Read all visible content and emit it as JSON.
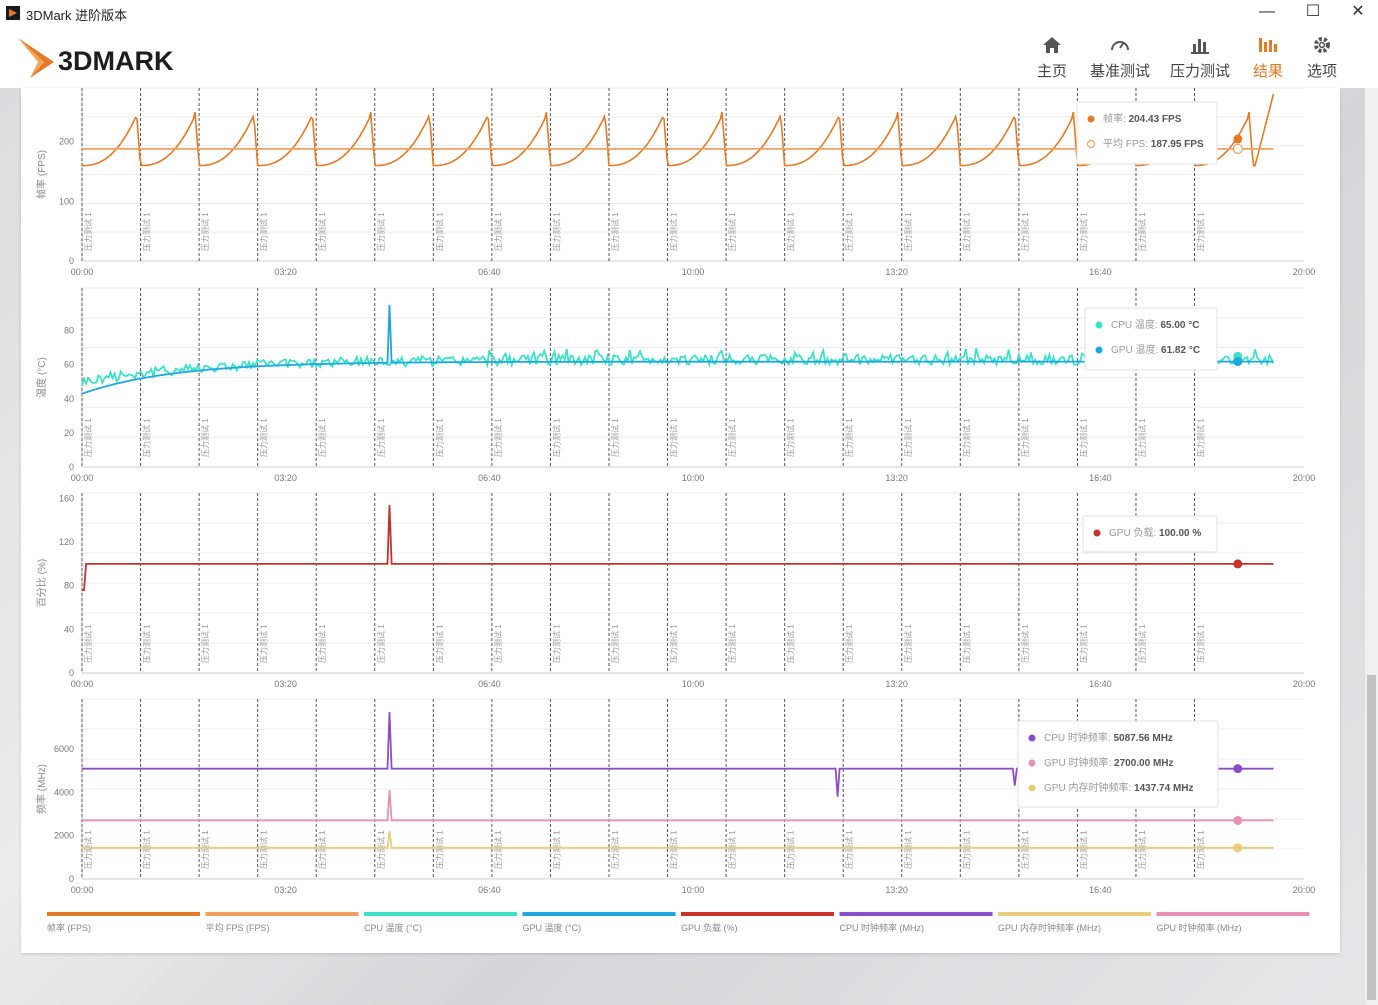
{
  "window": {
    "title": "3DMark 进阶版本",
    "minimize": "—",
    "maximize": "☐",
    "close": "✕"
  },
  "app": {
    "logo_text": "3DMARK"
  },
  "nav": [
    {
      "label": "主页",
      "icon": "home-icon"
    },
    {
      "label": "基准测试",
      "icon": "gauge-icon"
    },
    {
      "label": "压力测试",
      "icon": "bar-chart-icon"
    },
    {
      "label": "结果",
      "icon": "results-icon",
      "active": true
    },
    {
      "label": "选项",
      "icon": "gear-icon"
    }
  ],
  "colors": {
    "fps": "#e37a28",
    "avg_fps": "#f0a060",
    "cpu_temp": "#3de0c8",
    "gpu_temp": "#1ea8e0",
    "gpu_load": "#c8322d",
    "cpu_clock": "#8a4fc8",
    "gpu_mem_clock": "#e8cc78",
    "gpu_clock": "#e690b4",
    "marker": "#555555"
  },
  "chart_data": [
    {
      "type": "line",
      "id": "fps",
      "ylabel": "帧率 (FPS)",
      "ylim": [
        0,
        290
      ],
      "yticks": [
        0,
        100,
        200
      ],
      "xlim": [
        0,
        1200
      ],
      "xticks": [
        "00:00",
        "03:20",
        "06:40",
        "10:00",
        "13:20",
        "16:40",
        "20:00"
      ],
      "markers": {
        "label": "压力测试 1",
        "count": 20,
        "interval_s": 57.5
      },
      "series": [
        {
          "name": "帧率",
          "color_key": "fps",
          "pattern": "sawtooth",
          "base": 160,
          "peak": 260,
          "period": 57.5,
          "end_value": 280
        },
        {
          "name": "平均 FPS",
          "color_key": "avg_fps",
          "pattern": "flat",
          "base": 187.95
        }
      ],
      "tooltip": [
        {
          "label": "帧率",
          "value": "204.43 FPS",
          "color_key": "fps",
          "hollow": false
        },
        {
          "label": "平均 FPS",
          "value": "187.95 FPS",
          "color_key": "avg_fps",
          "hollow": true
        }
      ]
    },
    {
      "type": "line",
      "id": "temperature",
      "ylabel": "温度 (°C)",
      "ylim": [
        0,
        105
      ],
      "yticks": [
        0,
        20,
        40,
        60,
        80
      ],
      "xlim": [
        0,
        1200
      ],
      "xticks": [
        "00:00",
        "03:20",
        "06:40",
        "10:00",
        "13:20",
        "16:40",
        "20:00"
      ],
      "markers": {
        "label": "压力测试 1",
        "count": 20,
        "interval_s": 57.5
      },
      "series": [
        {
          "name": "CPU 温度",
          "color_key": "cpu_temp",
          "pattern": "noisy_rise",
          "start": 50,
          "base": 63,
          "jitter": 3
        },
        {
          "name": "GPU 温度",
          "color_key": "gpu_temp",
          "pattern": "rise",
          "start": 43,
          "base": 61.8,
          "spike_at": 302,
          "spike_value": 95
        }
      ],
      "tooltip": [
        {
          "label": "CPU 温度",
          "value": "65.00 °C",
          "color_key": "cpu_temp",
          "hollow": false
        },
        {
          "label": "GPU 温度",
          "value": "61.82 °C",
          "color_key": "gpu_temp",
          "hollow": false
        }
      ]
    },
    {
      "type": "line",
      "id": "percent",
      "ylabel": "百分比 (%)",
      "ylim": [
        0,
        165
      ],
      "yticks": [
        0,
        40,
        80,
        120,
        160
      ],
      "xlim": [
        0,
        1200
      ],
      "xticks": [
        "00:00",
        "03:20",
        "06:40",
        "10:00",
        "13:20",
        "16:40",
        "20:00"
      ],
      "markers": {
        "label": "压力测试 1",
        "count": 20,
        "interval_s": 57.5
      },
      "series": [
        {
          "name": "GPU 负载",
          "color_key": "gpu_load",
          "pattern": "flat",
          "base": 100,
          "start_dip": 76,
          "spike_at": 302,
          "spike_value": 154
        }
      ],
      "tooltip": [
        {
          "label": "GPU 负载",
          "value": "100.00 %",
          "color_key": "gpu_load",
          "hollow": false
        }
      ]
    },
    {
      "type": "line",
      "id": "clock",
      "ylabel": "频率 (MHz)",
      "ylim": [
        0,
        8300
      ],
      "yticks": [
        0,
        2000,
        4000,
        6000
      ],
      "xlim": [
        0,
        1200
      ],
      "xticks": [
        "00:00",
        "03:20",
        "06:40",
        "10:00",
        "13:20",
        "16:40",
        "20:00"
      ],
      "markers": {
        "label": "压力测试 1",
        "count": 20,
        "interval_s": 57.5
      },
      "series": [
        {
          "name": "CPU 时钟频率",
          "color_key": "cpu_clock",
          "pattern": "flat",
          "base": 5087.56,
          "spike_at": 302,
          "spike_value": 7700,
          "dips": [
            [
              742,
              3800
            ],
            [
              916,
              4300
            ]
          ]
        },
        {
          "name": "GPU 时钟频率",
          "color_key": "gpu_clock",
          "pattern": "flat",
          "base": 2700,
          "spike_at": 302,
          "spike_value": 4100
        },
        {
          "name": "GPU 内存时钟频率",
          "color_key": "gpu_mem_clock",
          "pattern": "flat",
          "base": 1437.74,
          "spike_at": 302,
          "spike_value": 2200
        }
      ],
      "tooltip": [
        {
          "label": "CPU 时钟频率",
          "value": "5087.56 MHz",
          "color_key": "cpu_clock",
          "hollow": false
        },
        {
          "label": "GPU 时钟频率",
          "value": "2700.00 MHz",
          "color_key": "gpu_clock",
          "hollow": false
        },
        {
          "label": "GPU 内存时钟频率",
          "value": "1437.74 MHz",
          "color_key": "gpu_mem_clock",
          "hollow": false
        }
      ]
    }
  ],
  "legend": [
    {
      "label": "帧率 (FPS)",
      "color_key": "fps"
    },
    {
      "label": "平均 FPS (FPS)",
      "color_key": "avg_fps"
    },
    {
      "label": "CPU 温度 (°C)",
      "color_key": "cpu_temp"
    },
    {
      "label": "GPU 温度 (°C)",
      "color_key": "gpu_temp"
    },
    {
      "label": "GPU 负载 (%)",
      "color_key": "gpu_load"
    },
    {
      "label": "CPU 时钟频率 (MHz)",
      "color_key": "cpu_clock"
    },
    {
      "label": "GPU 内存时钟频率 (MHz)",
      "color_key": "gpu_mem_clock"
    },
    {
      "label": "GPU 时钟频率 (MHz)",
      "color_key": "gpu_clock"
    }
  ]
}
